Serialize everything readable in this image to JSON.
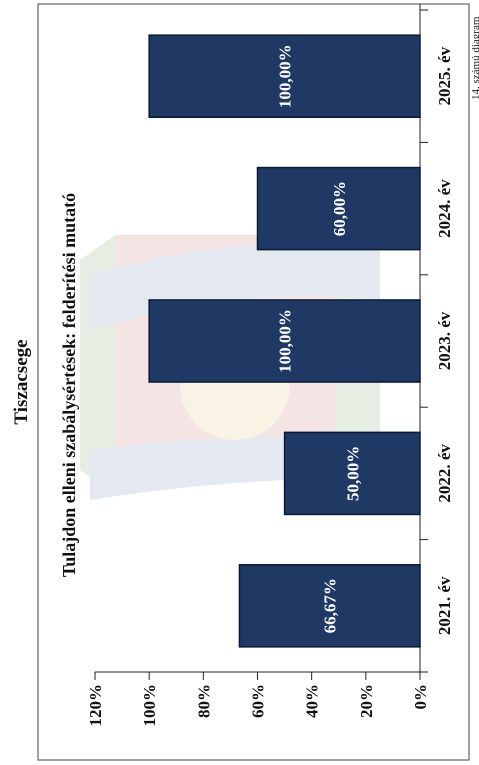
{
  "chart_data": {
    "type": "bar",
    "title": "Tiszacsege",
    "subtitle": "Tulajdon elleni szabálysértések: felderítési mutató",
    "categories": [
      "2021. év",
      "2022. év",
      "2023. év",
      "2024. év",
      "2025. év"
    ],
    "values": [
      66.67,
      50.0,
      100.0,
      60.0,
      100.0
    ],
    "value_labels": [
      "66,67%",
      "50,00%",
      "100,00%",
      "60,00%",
      "100,00%"
    ],
    "y_ticks": [
      "0%",
      "20%",
      "40%",
      "60%",
      "80%",
      "100%",
      "120%"
    ],
    "ylim": [
      0,
      120
    ],
    "grid": false,
    "legend": "none",
    "orientation": "rotated-90-clockwise",
    "caption": "14. számú diagram",
    "colors": {
      "bar_fill": "#1f3864",
      "bar_edge": "#0b1a33",
      "axis": "#222222"
    }
  }
}
